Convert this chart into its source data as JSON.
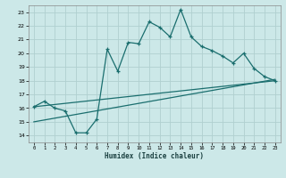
{
  "xlabel": "Humidex (Indice chaleur)",
  "xlim": [
    -0.5,
    23.5
  ],
  "ylim": [
    13.5,
    23.5
  ],
  "xticks": [
    0,
    1,
    2,
    3,
    4,
    5,
    6,
    7,
    8,
    9,
    10,
    11,
    12,
    13,
    14,
    15,
    16,
    17,
    18,
    19,
    20,
    21,
    22,
    23
  ],
  "yticks": [
    14,
    15,
    16,
    17,
    18,
    19,
    20,
    21,
    22,
    23
  ],
  "bg_color": "#cce8e8",
  "grid_color": "#b0d0d0",
  "line_color": "#1a6e6e",
  "jagged_x": [
    0,
    1,
    2,
    3,
    4,
    5,
    6,
    7,
    8,
    9,
    10,
    11,
    12,
    13,
    14,
    15,
    16,
    17,
    18,
    19,
    20,
    21,
    22,
    23
  ],
  "jagged_y": [
    16.1,
    16.5,
    16.0,
    15.8,
    14.2,
    14.2,
    15.2,
    20.3,
    18.7,
    20.8,
    20.7,
    22.3,
    21.9,
    21.2,
    23.2,
    21.2,
    20.5,
    20.2,
    19.8,
    19.3,
    20.0,
    18.9,
    18.3,
    18.0
  ],
  "line1_x": [
    0,
    23
  ],
  "line1_y": [
    16.1,
    18.0
  ],
  "line2_x": [
    0,
    23
  ],
  "line2_y": [
    15.0,
    18.1
  ],
  "line3_x": [
    0,
    23
  ],
  "line3_y": [
    16.4,
    18.3
  ]
}
